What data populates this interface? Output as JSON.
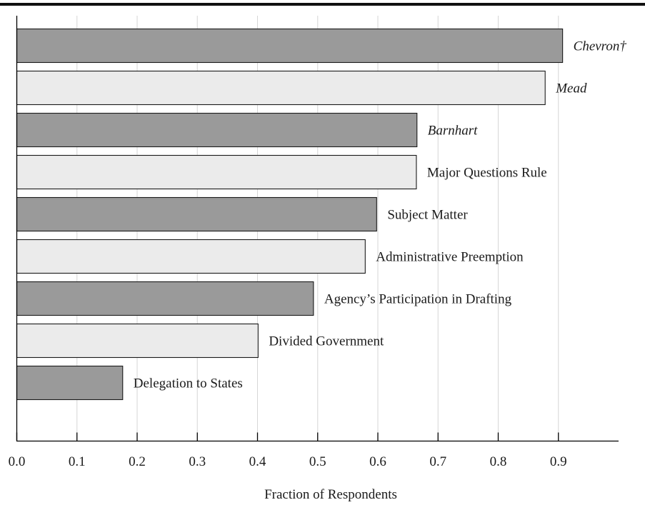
{
  "chart_data": {
    "type": "bar",
    "orientation": "horizontal",
    "categories": [
      "Chevron†",
      "Mead",
      "Barnhart",
      "Major Questions Rule",
      "Subject Matter",
      "Administrative Preemption",
      "Agency’s Participation in Drafting",
      "Divided Government",
      "Delegation to States"
    ],
    "italic_categories": [
      "Chevron†",
      "Mead",
      "Barnhart"
    ],
    "values": [
      0.907,
      0.878,
      0.665,
      0.664,
      0.598,
      0.579,
      0.493,
      0.401,
      0.176
    ],
    "bar_fills": [
      "#9a9a9a",
      "#ebebeb",
      "#9a9a9a",
      "#ebebeb",
      "#9a9a9a",
      "#ebebeb",
      "#9a9a9a",
      "#ebebeb",
      "#9a9a9a"
    ],
    "title": "",
    "xlabel": "Fraction of Respondents",
    "ylabel": "",
    "xlim": [
      0,
      1.0
    ],
    "xticks": [
      0.0,
      0.1,
      0.2,
      0.3,
      0.4,
      0.5,
      0.6,
      0.7,
      0.8,
      0.9
    ],
    "xtick_labels": [
      "0.0",
      "0.1",
      "0.2",
      "0.3",
      "0.4",
      "0.5",
      "0.6",
      "0.7",
      "0.8",
      "0.9"
    ],
    "grid": true,
    "legend": "none"
  }
}
